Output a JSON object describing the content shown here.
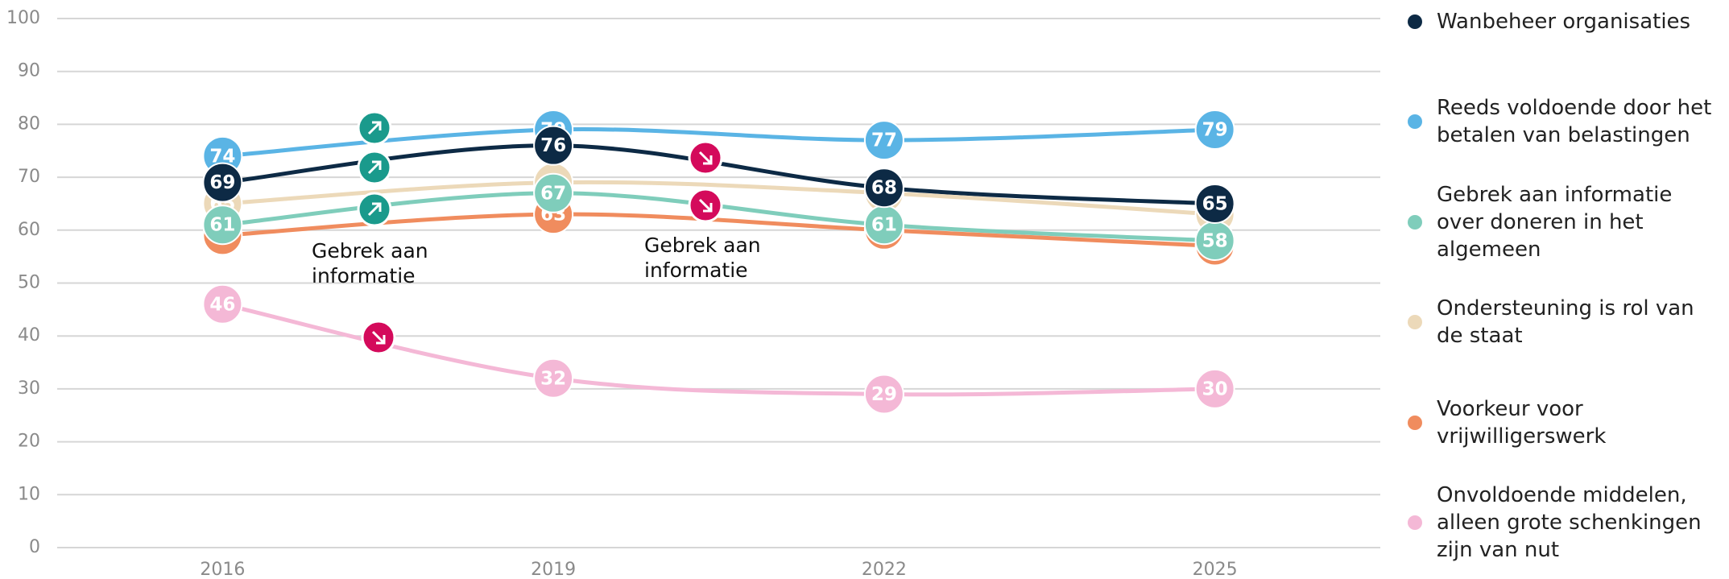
{
  "chart_data": {
    "type": "line",
    "x": [
      2016,
      2019,
      2022,
      2025
    ],
    "xlim": [
      2014.5,
      2026.5
    ],
    "xticks": [
      2016,
      2019,
      2022,
      2025
    ],
    "ylim": [
      0,
      100
    ],
    "yticks": [
      0,
      10,
      20,
      30,
      40,
      50,
      60,
      70,
      80,
      90,
      100
    ],
    "grid": true,
    "legend": "right",
    "series": [
      {
        "name": "Wanbeheer organisaties",
        "color": "#0d2a45",
        "values": [
          69,
          76,
          68,
          65
        ]
      },
      {
        "name": "Reeds voldoende door het betalen van belastingen",
        "color": "#5ab4e5",
        "values": [
          74,
          79,
          77,
          79
        ]
      },
      {
        "name": "Gebrek aan informatie over doneren in het algemeen",
        "color": "#7fcdbb",
        "values": [
          61,
          67,
          61,
          58
        ]
      },
      {
        "name": "Ondersteuning is rol van de staat",
        "color": "#ecd9b9",
        "values": [
          65,
          69,
          67,
          63
        ]
      },
      {
        "name": "Voorkeur voor vrijwilligerswerk",
        "color": "#f08c5e",
        "values": [
          59,
          63,
          60,
          57
        ]
      },
      {
        "name": "Onvoldoende middelen, alleen grote schenkingen zijn van nut",
        "color": "#f4b8d6",
        "values": [
          46,
          32,
          29,
          30
        ]
      }
    ],
    "annotations": [
      "Gebrek aan informatie",
      "Gebrek aan informatie"
    ]
  }
}
